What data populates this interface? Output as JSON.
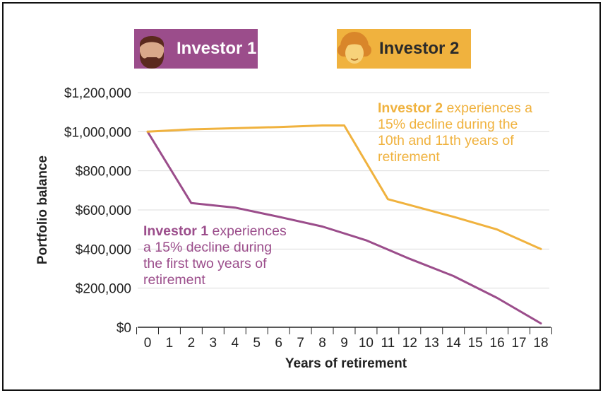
{
  "legend": {
    "investor1_label": "Investor 1",
    "investor2_label": "Investor 2",
    "investor1_icon": "bearded-man-icon",
    "investor2_icon": "curly-hair-woman-icon"
  },
  "annotations": {
    "investor2_bold": "Investor 2",
    "investor2_text": " experiences a\n15% decline during the\n10th and 11th years of\nretirement",
    "investor1_bold": "Investor 1",
    "investor1_text": " experiences\na 15% decline during\nthe first two years of\nretirement"
  },
  "colors": {
    "investor1": "#9b4d8b",
    "investor2": "#f0b23e",
    "grid": "#dcdcdc",
    "axis": "#222222"
  },
  "chart_data": {
    "type": "line",
    "title": "",
    "xlabel": "Years of retirement",
    "ylabel": "Portfolio balance",
    "ylim": [
      0,
      1200000
    ],
    "yticks": [
      {
        "value": 0,
        "label": "$0"
      },
      {
        "value": 200000,
        "label": "$200,000"
      },
      {
        "value": 400000,
        "label": "$400,000"
      },
      {
        "value": 600000,
        "label": "$600,000"
      },
      {
        "value": 800000,
        "label": "$800,000"
      },
      {
        "value": 1000000,
        "label": "$1,000,000"
      },
      {
        "value": 1200000,
        "label": "$1,200,000"
      }
    ],
    "x": [
      0,
      1,
      2,
      3,
      4,
      5,
      6,
      7,
      8,
      9,
      10,
      11,
      12,
      13,
      14,
      15,
      16,
      17,
      18
    ],
    "xtick_labels": [
      "0",
      "1",
      "2",
      "3",
      "4",
      "5",
      "6",
      "7",
      "8",
      "9",
      "10",
      "11",
      "12",
      "13",
      "14",
      "15",
      "16",
      "17",
      "18"
    ],
    "grid": true,
    "series": [
      {
        "name": "Investor 1",
        "points": [
          [
            0,
            1000000
          ],
          [
            2,
            635000
          ],
          [
            4,
            612000
          ],
          [
            6,
            565000
          ],
          [
            8,
            515000
          ],
          [
            10,
            445000
          ],
          [
            12,
            350000
          ],
          [
            14,
            262000
          ],
          [
            16,
            150000
          ],
          [
            18,
            20000
          ]
        ]
      },
      {
        "name": "Investor 2",
        "points": [
          [
            0,
            1000000
          ],
          [
            2,
            1012000
          ],
          [
            4,
            1018000
          ],
          [
            6,
            1024000
          ],
          [
            8,
            1032000
          ],
          [
            9,
            1032000
          ],
          [
            11,
            655000
          ],
          [
            12,
            625000
          ],
          [
            14,
            565000
          ],
          [
            16,
            500000
          ],
          [
            18,
            400000
          ]
        ]
      }
    ]
  }
}
